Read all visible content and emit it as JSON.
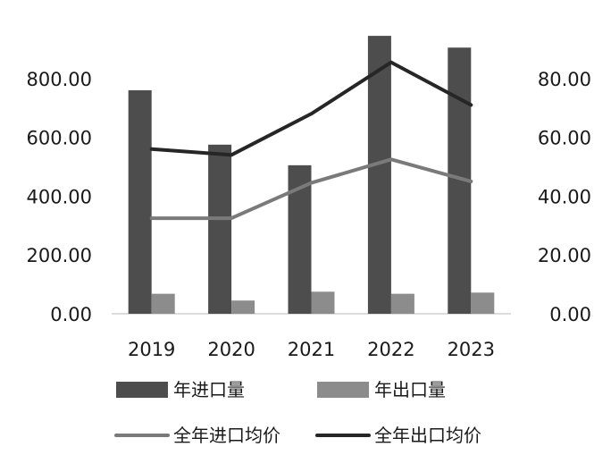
{
  "chart_data": {
    "type": "bar",
    "categories": [
      "2019",
      "2020",
      "2021",
      "2022",
      "2023"
    ],
    "series": [
      {
        "name": "年进口量",
        "chart_type": "bar",
        "axis": "left",
        "color": "#4d4d4d",
        "values": [
          760,
          575,
          505,
          945,
          905
        ]
      },
      {
        "name": "年出口量",
        "chart_type": "bar",
        "axis": "left",
        "color": "#8c8c8c",
        "values": [
          68,
          45,
          75,
          68,
          72
        ]
      },
      {
        "name": "全年进口均价",
        "chart_type": "line",
        "axis": "right",
        "color": "#7a7a7a",
        "values": [
          32.5,
          32.5,
          44.5,
          52.5,
          45
        ]
      },
      {
        "name": "全年出口均价",
        "chart_type": "line",
        "axis": "right",
        "color": "#262626",
        "values": [
          56,
          54,
          68,
          85.5,
          71
        ]
      }
    ],
    "left_axis": {
      "ticks": [
        "0.00",
        "200.00",
        "400.00",
        "600.00",
        "800.00"
      ],
      "ylim": [
        0,
        1000
      ]
    },
    "right_axis": {
      "ticks": [
        "0.00",
        "20.00",
        "40.00",
        "60.00",
        "80.00"
      ],
      "ylim": [
        0,
        100
      ]
    },
    "grid": false,
    "legend_position": "bottom"
  }
}
